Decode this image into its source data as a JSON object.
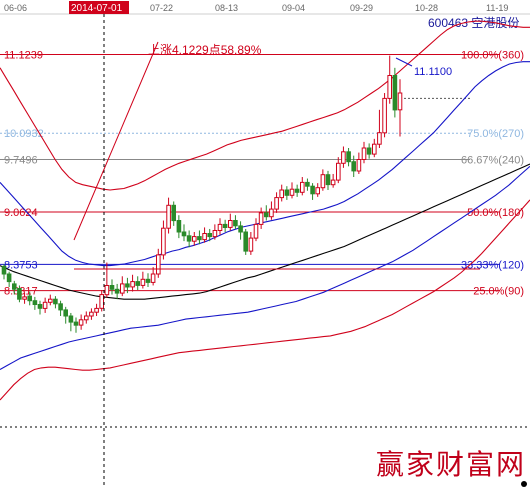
{
  "header": {
    "stock_title": "600463 空港股份",
    "dates": [
      "06-06",
      "2014-07-01",
      "07-22",
      "08-13",
      "09-04",
      "09-29",
      "10-28",
      "11-19"
    ],
    "selected_date": "2014-07-01"
  },
  "colors": {
    "red": "#d0021b",
    "blue": "#1515c8",
    "black": "#000000",
    "light_blue": "#8fb7e0",
    "candle_up": "#d0021b",
    "candle_down": "#2a8a2a",
    "gray": "#888888"
  },
  "chart_data": {
    "type": "candlestick",
    "title": "",
    "xlabel": "",
    "ylabel": "",
    "ylim": [
      6.6,
      11.55
    ],
    "x_ticks": [
      "06-06",
      "2014-07-01",
      "07-22",
      "08-13",
      "09-04",
      "09-29",
      "10-28",
      "11-19"
    ],
    "price_levels": [
      {
        "price": "11.1239",
        "label": "100.0%(360)"
      },
      {
        "price": "10.0932",
        "label": "75.0%(270)"
      },
      {
        "price": "9.7496",
        "label": "66.67%(240)"
      },
      {
        "price": "9.0624",
        "label": "50.0%(180)"
      },
      {
        "price": "8.3753",
        "label": "33.33%(120)"
      },
      {
        "price": "8.0317",
        "label": "25.0%(90)"
      }
    ],
    "annotation_rise": "上涨4.1229点58.89%",
    "annotation_high": "11.1100",
    "candles": [
      [
        8.35,
        8.25,
        8.38,
        8.18
      ],
      [
        8.25,
        8.15,
        8.28,
        8.08
      ],
      [
        8.12,
        8.05,
        8.16,
        7.98
      ],
      [
        8.06,
        7.92,
        8.1,
        7.88
      ],
      [
        7.92,
        7.95,
        8.0,
        7.86
      ],
      [
        7.96,
        7.9,
        8.02,
        7.84
      ],
      [
        7.9,
        7.85,
        7.95,
        7.78
      ],
      [
        7.85,
        7.8,
        7.9,
        7.72
      ],
      [
        7.8,
        7.88,
        7.94,
        7.74
      ],
      [
        7.88,
        7.92,
        7.98,
        7.84
      ],
      [
        7.92,
        7.86,
        7.96,
        7.8
      ],
      [
        7.86,
        7.78,
        7.9,
        7.7
      ],
      [
        7.78,
        7.7,
        7.82,
        7.6
      ],
      [
        7.7,
        7.62,
        7.74,
        7.5
      ],
      [
        7.62,
        7.58,
        7.68,
        7.48
      ],
      [
        7.58,
        7.65,
        7.72,
        7.52
      ],
      [
        7.65,
        7.7,
        7.76,
        7.6
      ],
      [
        7.7,
        7.75,
        7.8,
        7.65
      ],
      [
        7.75,
        7.8,
        7.86,
        7.7
      ],
      [
        7.8,
        7.98,
        8.04,
        7.76
      ],
      [
        7.98,
        8.1,
        8.4,
        7.94
      ],
      [
        8.1,
        8.05,
        8.18,
        7.98
      ],
      [
        8.05,
        8.0,
        8.12,
        7.92
      ],
      [
        8.0,
        8.12,
        8.22,
        7.96
      ],
      [
        8.12,
        8.08,
        8.2,
        8.0
      ],
      [
        8.08,
        8.15,
        8.24,
        8.02
      ],
      [
        8.15,
        8.1,
        8.22,
        8.04
      ],
      [
        8.1,
        8.18,
        8.28,
        8.06
      ],
      [
        8.18,
        8.14,
        8.26,
        8.08
      ],
      [
        8.14,
        8.25,
        8.34,
        8.1
      ],
      [
        8.25,
        8.5,
        8.58,
        8.2
      ],
      [
        8.5,
        8.85,
        8.95,
        8.44
      ],
      [
        8.85,
        9.15,
        9.25,
        8.78
      ],
      [
        9.15,
        8.95,
        9.2,
        8.88
      ],
      [
        8.95,
        8.8,
        9.02,
        8.72
      ],
      [
        8.8,
        8.75,
        8.9,
        8.68
      ],
      [
        8.75,
        8.68,
        8.82,
        8.6
      ],
      [
        8.68,
        8.74,
        8.8,
        8.62
      ],
      [
        8.74,
        8.7,
        8.82,
        8.64
      ],
      [
        8.7,
        8.78,
        8.86,
        8.66
      ],
      [
        8.78,
        8.74,
        8.84,
        8.68
      ],
      [
        8.74,
        8.82,
        8.9,
        8.7
      ],
      [
        8.82,
        8.9,
        8.98,
        8.76
      ],
      [
        8.9,
        8.86,
        8.96,
        8.8
      ],
      [
        8.86,
        8.95,
        9.04,
        8.82
      ],
      [
        8.95,
        8.88,
        9.02,
        8.84
      ],
      [
        8.88,
        8.8,
        8.94,
        8.7
      ],
      [
        8.8,
        8.55,
        8.84,
        8.5
      ],
      [
        8.55,
        8.72,
        8.8,
        8.5
      ],
      [
        8.72,
        8.9,
        8.98,
        8.68
      ],
      [
        8.9,
        9.05,
        9.12,
        8.84
      ],
      [
        9.05,
        9.0,
        9.15,
        8.95
      ],
      [
        9.0,
        9.1,
        9.2,
        8.96
      ],
      [
        9.1,
        9.25,
        9.32,
        9.05
      ],
      [
        9.25,
        9.35,
        9.42,
        9.2
      ],
      [
        9.35,
        9.28,
        9.4,
        9.22
      ],
      [
        9.28,
        9.36,
        9.45,
        9.24
      ],
      [
        9.36,
        9.32,
        9.42,
        9.26
      ],
      [
        9.32,
        9.45,
        9.52,
        9.28
      ],
      [
        9.45,
        9.4,
        9.5,
        9.34
      ],
      [
        9.4,
        9.3,
        9.44,
        9.22
      ],
      [
        9.3,
        9.38,
        9.44,
        9.26
      ],
      [
        9.38,
        9.55,
        9.62,
        9.34
      ],
      [
        9.55,
        9.42,
        9.6,
        9.35
      ],
      [
        9.42,
        9.48,
        9.56,
        9.38
      ],
      [
        9.48,
        9.7,
        9.78,
        9.44
      ],
      [
        9.7,
        9.85,
        9.92,
        9.64
      ],
      [
        9.85,
        9.72,
        9.9,
        9.66
      ],
      [
        9.72,
        9.6,
        9.8,
        9.52
      ],
      [
        9.6,
        9.75,
        9.84,
        9.56
      ],
      [
        9.75,
        9.9,
        9.98,
        9.7
      ],
      [
        9.9,
        9.82,
        9.96,
        9.76
      ],
      [
        9.82,
        9.95,
        10.02,
        9.78
      ],
      [
        9.95,
        10.1,
        10.4,
        9.9
      ],
      [
        10.1,
        10.55,
        10.62,
        10.04
      ],
      [
        10.55,
        10.85,
        11.11,
        10.48
      ],
      [
        10.85,
        10.4,
        10.95,
        10.3
      ],
      [
        10.4,
        10.62,
        10.8,
        10.05
      ]
    ],
    "series": [
      {
        "color": "#000000",
        "values": [
          8.36,
          8.32,
          8.28,
          8.25,
          8.22,
          8.19,
          8.16,
          8.13,
          8.1,
          8.07,
          8.04,
          8.02,
          8.0,
          7.98,
          7.96,
          7.95,
          7.94,
          7.93,
          7.92,
          7.92,
          7.92,
          7.92,
          7.93,
          7.94,
          7.95,
          7.96,
          7.97,
          7.98,
          7.99,
          8.0,
          8.02,
          8.05,
          8.08,
          8.11,
          8.14,
          8.17,
          8.2,
          8.22,
          8.25,
          8.28,
          8.31,
          8.34,
          8.37,
          8.4,
          8.43,
          8.46,
          8.49,
          8.52,
          8.55,
          8.58,
          8.61,
          8.65,
          8.69,
          8.73,
          8.77,
          8.81,
          8.85,
          8.89,
          8.93,
          8.97,
          9.01,
          9.05,
          9.09,
          9.13,
          9.17,
          9.21,
          9.25,
          9.29,
          9.33,
          9.37,
          9.41,
          9.45,
          9.49,
          9.53,
          9.57,
          9.61,
          9.65,
          9.69
        ]
      },
      {
        "color": "#1515c8",
        "values": [
          9.45,
          9.35,
          9.25,
          9.15,
          9.05,
          8.95,
          8.85,
          8.75,
          8.65,
          8.55,
          8.48,
          8.43,
          8.4,
          8.38,
          8.37,
          8.36,
          8.36,
          8.37,
          8.38,
          8.4,
          8.42,
          8.44,
          8.47,
          8.5,
          8.52,
          8.55,
          8.57,
          8.6,
          8.62,
          8.65,
          8.68,
          8.72,
          8.76,
          8.8,
          8.83,
          8.86,
          8.88,
          8.9,
          8.92,
          8.94,
          8.96,
          8.98,
          9.0,
          9.02,
          9.04,
          9.06,
          9.08,
          9.1,
          9.13,
          9.16,
          9.2,
          9.25,
          9.3,
          9.36,
          9.42,
          9.48,
          9.55,
          9.62,
          9.7,
          9.78,
          9.86,
          9.94,
          10.02,
          10.1,
          10.2,
          10.3,
          10.4,
          10.5,
          10.6,
          10.7,
          10.78,
          10.85,
          10.91,
          10.96,
          11.0,
          11.02,
          11.03,
          11.03
        ]
      },
      {
        "color": "#1515c8",
        "values": [
          7.0,
          7.05,
          7.1,
          7.15,
          7.18,
          7.21,
          7.24,
          7.27,
          7.3,
          7.33,
          7.36,
          7.38,
          7.4,
          7.42,
          7.44,
          7.46,
          7.48,
          7.5,
          7.52,
          7.54,
          7.55,
          7.56,
          7.57,
          7.58,
          7.6,
          7.62,
          7.64,
          7.66,
          7.67,
          7.68,
          7.69,
          7.7,
          7.71,
          7.72,
          7.73,
          7.74,
          7.75,
          7.77,
          7.79,
          7.81,
          7.83,
          7.85,
          7.87,
          7.89,
          7.92,
          7.95,
          7.98,
          8.01,
          8.05,
          8.09,
          8.13,
          8.17,
          8.21,
          8.25,
          8.29,
          8.33,
          8.37,
          8.41,
          8.46,
          8.51,
          8.56,
          8.62,
          8.68,
          8.74,
          8.8,
          8.86,
          8.92,
          8.98,
          9.04,
          9.1,
          9.16,
          9.22,
          9.28,
          9.35,
          9.42,
          9.5,
          9.58,
          9.66
        ]
      },
      {
        "color": "#d0021b",
        "values": [
          10.95,
          10.8,
          10.65,
          10.5,
          10.35,
          10.2,
          10.05,
          9.9,
          9.75,
          9.62,
          9.52,
          9.45,
          9.42,
          9.4,
          9.38,
          9.36,
          9.35,
          9.36,
          9.37,
          9.4,
          9.43,
          9.47,
          9.52,
          9.57,
          9.62,
          9.66,
          9.7,
          9.73,
          9.76,
          9.79,
          9.82,
          9.86,
          9.9,
          9.94,
          9.97,
          10.0,
          10.02,
          10.04,
          10.06,
          10.08,
          10.1,
          10.12,
          10.15,
          10.18,
          10.21,
          10.24,
          10.27,
          10.3,
          10.33,
          10.36,
          10.4,
          10.45,
          10.5,
          10.56,
          10.62,
          10.68,
          10.75,
          10.82,
          10.9,
          10.98,
          11.06,
          11.14,
          11.22,
          11.3,
          11.38,
          11.45,
          11.5,
          11.53,
          11.55,
          11.56,
          11.56,
          11.55,
          11.54,
          11.52,
          11.5,
          11.49,
          11.48,
          11.48
        ]
      },
      {
        "color": "#d0021b",
        "values": [
          6.6,
          6.7,
          6.8,
          6.88,
          6.95,
          7.0,
          7.02,
          7.03,
          7.03,
          7.02,
          7.01,
          7.0,
          6.99,
          6.99,
          7.0,
          7.01,
          7.02,
          7.04,
          7.06,
          7.08,
          7.1,
          7.12,
          7.14,
          7.16,
          7.18,
          7.2,
          7.22,
          7.23,
          7.24,
          7.25,
          7.26,
          7.27,
          7.28,
          7.29,
          7.3,
          7.31,
          7.32,
          7.33,
          7.34,
          7.35,
          7.36,
          7.37,
          7.38,
          7.39,
          7.4,
          7.41,
          7.42,
          7.43,
          7.44,
          7.46,
          7.48,
          7.5,
          7.53,
          7.56,
          7.6,
          7.64,
          7.68,
          7.72,
          7.77,
          7.82,
          7.87,
          7.92,
          7.97,
          8.02,
          8.08,
          8.14,
          8.2,
          8.27,
          8.35,
          8.43,
          8.52,
          8.62,
          8.72,
          8.82,
          8.92,
          9.02,
          9.12,
          9.22
        ]
      }
    ]
  },
  "watermark": "赢家财富网"
}
